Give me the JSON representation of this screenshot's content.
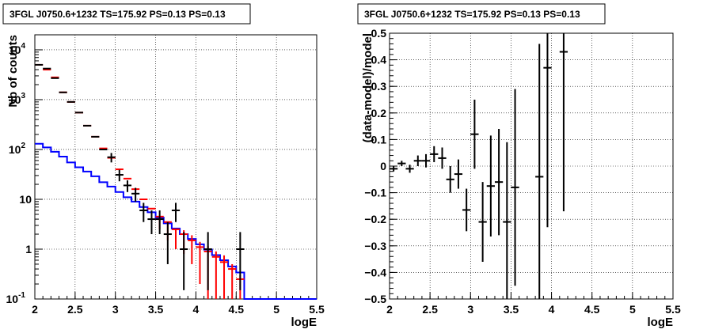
{
  "chart_data": [
    {
      "type": "line",
      "title": "3FGL J0750.6+1232 TS=175.92 PS=0.13 PS=0.13",
      "xlabel": "logE",
      "ylabel": "Nb of counts",
      "xlim": [
        2,
        5.5
      ],
      "ylim": [
        0.1,
        20000
      ],
      "yscale": "log",
      "grid": true,
      "x_ticks": [
        "2",
        "2.5",
        "3",
        "3.5",
        "4",
        "4.5",
        "5",
        "5.5"
      ],
      "y_ticks": [
        {
          "value": 0.1,
          "label": "10",
          "sup": "-1"
        },
        {
          "value": 1,
          "label": "1",
          "sup": ""
        },
        {
          "value": 10,
          "label": "10",
          "sup": ""
        },
        {
          "value": 100,
          "label": "10",
          "sup": "2"
        },
        {
          "value": 1000,
          "label": "10",
          "sup": "3"
        },
        {
          "value": 10000,
          "label": "10",
          "sup": "4"
        }
      ],
      "bin_edges": [
        2.0,
        2.1,
        2.2,
        2.3,
        2.4,
        2.5,
        2.6,
        2.7,
        2.8,
        2.9,
        3.0,
        3.1,
        3.2,
        3.3,
        3.4,
        3.5,
        3.6,
        3.7,
        3.8,
        3.9,
        4.0,
        4.1,
        4.2,
        4.3,
        4.4,
        4.5,
        4.6,
        4.7,
        4.8,
        4.9,
        5.0,
        5.1,
        5.2,
        5.3,
        5.4,
        5.5
      ],
      "series": [
        {
          "color": "#0000ff",
          "kind": "step",
          "values": [
            130,
            110,
            90,
            72,
            55,
            44,
            36,
            29,
            22,
            18,
            14,
            11,
            9,
            7,
            5.5,
            4.3,
            3.3,
            2.6,
            2.0,
            1.6,
            1.25,
            0.98,
            0.76,
            0.6,
            0.45,
            0.34,
            0.1,
            0.1,
            0.1,
            0.1,
            0.1,
            0.1,
            0.1,
            0.1,
            0.1
          ]
        },
        {
          "color": "#ff0000",
          "kind": "points",
          "x": [
            2.05,
            2.15,
            2.25,
            2.35,
            2.45,
            2.55,
            2.65,
            2.75,
            2.85,
            2.95,
            3.05,
            3.15,
            3.25,
            3.35,
            3.45,
            3.55,
            3.65,
            3.75,
            3.85,
            3.95,
            4.05,
            4.15,
            4.25,
            4.35,
            4.45,
            4.55
          ],
          "y": [
            5000,
            4000,
            2800,
            1400,
            900,
            550,
            300,
            180,
            105,
            68,
            40,
            26,
            16,
            10,
            6.5,
            4.5,
            3.5,
            2.5,
            2.0,
            1.5,
            1.1,
            0.9,
            0.7,
            0.55,
            0.4,
            0.25
          ],
          "yerr_lo": [
            0,
            0,
            0,
            0,
            0,
            0,
            0,
            0,
            0,
            0,
            0,
            0,
            0,
            0,
            0,
            2.0,
            2.0,
            1.5,
            1.2,
            1.0,
            0.9,
            0.8,
            0.6,
            0.5,
            0.37,
            0.23
          ],
          "yerr_hi": [
            0,
            0,
            0,
            0,
            0,
            0,
            0,
            0,
            0,
            0,
            0,
            0,
            0,
            0,
            0,
            0,
            0,
            0,
            0.4,
            0.4,
            0.3,
            0.25,
            0.2,
            0.2,
            0.1,
            0.05
          ]
        },
        {
          "color": "#000000",
          "kind": "points",
          "x": [
            2.05,
            2.15,
            2.25,
            2.35,
            2.45,
            2.55,
            2.65,
            2.75,
            2.85,
            2.95,
            3.05,
            3.15,
            3.25,
            3.35,
            3.45,
            3.55,
            3.65,
            3.75,
            3.85,
            4.15,
            4.55
          ],
          "y": [
            5000,
            4200,
            2700,
            1400,
            900,
            550,
            300,
            180,
            100,
            70,
            31,
            19,
            13,
            6,
            4,
            4,
            2,
            6,
            1,
            1,
            1
          ],
          "yerr_lo": [
            0,
            0,
            0,
            0,
            0,
            0,
            0,
            0,
            0,
            15,
            8,
            5,
            4,
            2.5,
            2,
            2,
            1.5,
            2.5,
            0.85,
            0.85,
            0.85
          ],
          "yerr_hi": [
            0,
            0,
            0,
            0,
            0,
            0,
            0,
            0,
            0,
            15,
            8,
            5,
            4,
            2.5,
            2,
            2,
            1.5,
            2.5,
            1.2,
            1.2,
            1.2
          ]
        }
      ]
    },
    {
      "type": "scatter",
      "title": "3FGL J0750.6+1232 TS=175.92 PS=0.13 PS=0.13",
      "xlabel": "logE",
      "ylabel": "(data-model)/model",
      "xlim": [
        2,
        5.5
      ],
      "ylim": [
        -0.5,
        0.5
      ],
      "grid": true,
      "x_ticks": [
        "2",
        "2.5",
        "3",
        "3.5",
        "4",
        "4.5",
        "5",
        "5.5"
      ],
      "y_ticks": [
        "-0.5",
        "-0.4",
        "-0.3",
        "-0.2",
        "-0.1",
        "0",
        "0.1",
        "0.2",
        "0.3",
        "0.4",
        "0.5"
      ],
      "points": [
        {
          "x": 2.05,
          "y": -0.01,
          "err": 0.01
        },
        {
          "x": 2.15,
          "y": 0.01,
          "err": 0.01
        },
        {
          "x": 2.25,
          "y": -0.01,
          "err": 0.015
        },
        {
          "x": 2.35,
          "y": 0.02,
          "err": 0.02
        },
        {
          "x": 2.45,
          "y": 0.02,
          "err": 0.025
        },
        {
          "x": 2.55,
          "y": 0.045,
          "err": 0.03
        },
        {
          "x": 2.65,
          "y": 0.03,
          "err": 0.04
        },
        {
          "x": 2.75,
          "y": -0.05,
          "err": 0.05
        },
        {
          "x": 2.85,
          "y": -0.03,
          "err": 0.055
        },
        {
          "x": 2.95,
          "y": -0.165,
          "err": 0.08
        },
        {
          "x": 3.05,
          "y": 0.12,
          "err": 0.13
        },
        {
          "x": 3.15,
          "y": -0.21,
          "err": 0.15
        },
        {
          "x": 3.25,
          "y": -0.075,
          "err": 0.19
        },
        {
          "x": 3.35,
          "y": -0.06,
          "err": 0.2
        },
        {
          "x": 3.45,
          "y": -0.21,
          "err": 0.3
        },
        {
          "x": 3.55,
          "y": -0.08,
          "err": 0.37
        },
        {
          "x": 3.85,
          "y": -0.04,
          "err": 0.5
        },
        {
          "x": 3.95,
          "y": 0.37,
          "err": 0.6
        },
        {
          "x": 4.15,
          "y": 0.43,
          "err": 0.6
        }
      ]
    }
  ]
}
